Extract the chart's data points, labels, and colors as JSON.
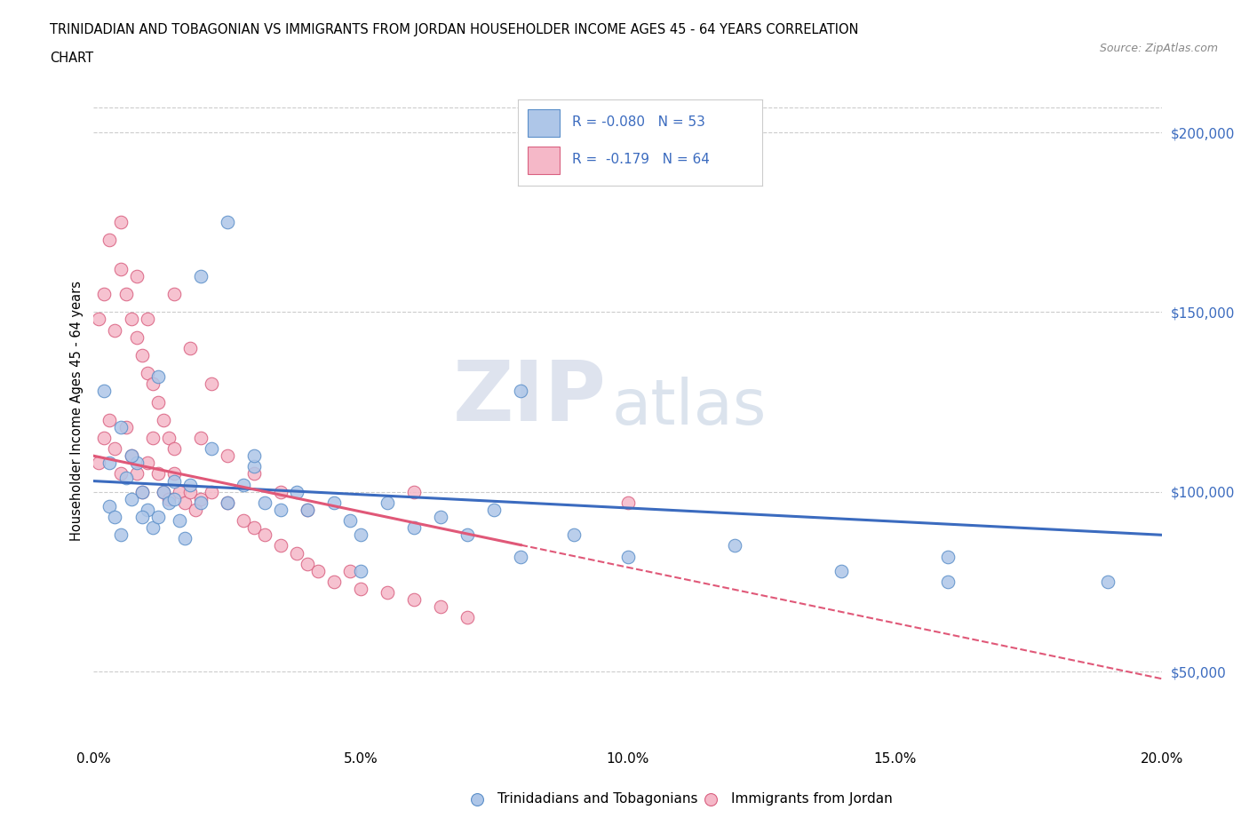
{
  "title_line1": "TRINIDADIAN AND TOBAGONIAN VS IMMIGRANTS FROM JORDAN HOUSEHOLDER INCOME AGES 45 - 64 YEARS CORRELATION",
  "title_line2": "CHART",
  "source_text": "Source: ZipAtlas.com",
  "watermark_zip": "ZIP",
  "watermark_atlas": "atlas",
  "ylabel": "Householder Income Ages 45 - 64 years",
  "xlim": [
    0.0,
    0.2
  ],
  "ylim": [
    30000,
    215000
  ],
  "xtick_positions": [
    0.0,
    0.0125,
    0.025,
    0.0375,
    0.05,
    0.0625,
    0.075,
    0.0875,
    0.1,
    0.1125,
    0.125,
    0.1375,
    0.15,
    0.1625,
    0.175,
    0.1875,
    0.2
  ],
  "xtick_labels": [
    "0.0%",
    "",
    "",
    "",
    "5.0%",
    "",
    "",
    "",
    "10.0%",
    "",
    "",
    "",
    "15.0%",
    "",
    "",
    "",
    "20.0%"
  ],
  "ytick_values": [
    50000,
    100000,
    150000,
    200000
  ],
  "ytick_labels": [
    "$50,000",
    "$100,000",
    "$150,000",
    "$200,000"
  ],
  "blue_R": -0.08,
  "blue_N": 53,
  "blue_label": "Trinidadians and Tobagonians",
  "blue_color": "#aec6e8",
  "blue_edge": "#5b8fc9",
  "blue_trend_color": "#3b6bbf",
  "pink_R": -0.179,
  "pink_N": 64,
  "pink_label": "Immigrants from Jordan",
  "pink_color": "#f5b8c8",
  "pink_edge": "#d96080",
  "pink_trend_color": "#e05878",
  "legend_text_color": "#3b6bbf",
  "grid_color": "#cccccc",
  "bg_color": "#ffffff",
  "blue_x": [
    0.003,
    0.004,
    0.005,
    0.006,
    0.007,
    0.008,
    0.009,
    0.01,
    0.011,
    0.012,
    0.013,
    0.014,
    0.015,
    0.016,
    0.017,
    0.018,
    0.02,
    0.022,
    0.025,
    0.028,
    0.03,
    0.032,
    0.035,
    0.038,
    0.04,
    0.045,
    0.048,
    0.05,
    0.055,
    0.06,
    0.065,
    0.07,
    0.075,
    0.08,
    0.09,
    0.1,
    0.12,
    0.14,
    0.16,
    0.19,
    0.002,
    0.003,
    0.005,
    0.007,
    0.009,
    0.012,
    0.015,
    0.02,
    0.025,
    0.03,
    0.05,
    0.08,
    0.16
  ],
  "blue_y": [
    96000,
    93000,
    88000,
    104000,
    98000,
    108000,
    100000,
    95000,
    90000,
    93000,
    100000,
    97000,
    103000,
    92000,
    87000,
    102000,
    97000,
    112000,
    97000,
    102000,
    107000,
    97000,
    95000,
    100000,
    95000,
    97000,
    92000,
    88000,
    97000,
    90000,
    93000,
    88000,
    95000,
    82000,
    88000,
    82000,
    85000,
    78000,
    82000,
    75000,
    128000,
    108000,
    118000,
    110000,
    93000,
    132000,
    98000,
    160000,
    175000,
    110000,
    78000,
    128000,
    75000
  ],
  "pink_x": [
    0.001,
    0.002,
    0.003,
    0.004,
    0.005,
    0.006,
    0.007,
    0.008,
    0.009,
    0.01,
    0.011,
    0.012,
    0.013,
    0.014,
    0.015,
    0.016,
    0.017,
    0.018,
    0.019,
    0.02,
    0.022,
    0.025,
    0.028,
    0.03,
    0.032,
    0.035,
    0.038,
    0.04,
    0.042,
    0.045,
    0.048,
    0.05,
    0.055,
    0.06,
    0.065,
    0.07,
    0.001,
    0.002,
    0.003,
    0.004,
    0.005,
    0.006,
    0.007,
    0.008,
    0.009,
    0.01,
    0.011,
    0.012,
    0.013,
    0.014,
    0.015,
    0.02,
    0.025,
    0.03,
    0.035,
    0.04,
    0.005,
    0.008,
    0.01,
    0.015,
    0.018,
    0.022,
    0.06,
    0.1
  ],
  "pink_y": [
    108000,
    115000,
    120000,
    112000,
    105000,
    118000,
    110000,
    105000,
    100000,
    108000,
    115000,
    105000,
    100000,
    98000,
    105000,
    100000,
    97000,
    100000,
    95000,
    98000,
    100000,
    97000,
    92000,
    90000,
    88000,
    85000,
    83000,
    80000,
    78000,
    75000,
    78000,
    73000,
    72000,
    70000,
    68000,
    65000,
    148000,
    155000,
    170000,
    145000,
    162000,
    155000,
    148000,
    143000,
    138000,
    133000,
    130000,
    125000,
    120000,
    115000,
    112000,
    115000,
    110000,
    105000,
    100000,
    95000,
    175000,
    160000,
    148000,
    155000,
    140000,
    130000,
    100000,
    97000
  ]
}
